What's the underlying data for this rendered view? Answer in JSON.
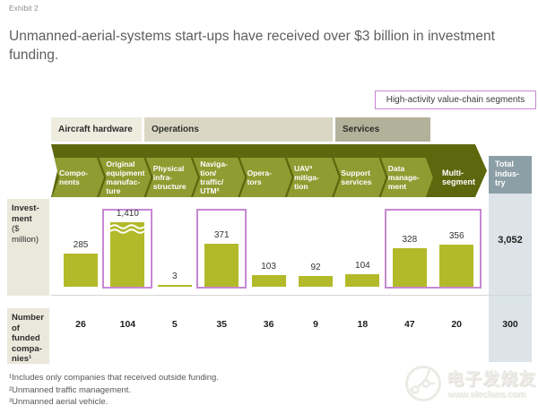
{
  "exhibit_label": "Exhibit 2",
  "title": "Unmanned-aerial-systems start-ups have received over $3 billion in investment funding.",
  "legend_box_label": "High-activity value-chain segments",
  "value_chain_groups": [
    {
      "name": "Aircraft hardware"
    },
    {
      "name": "Operations"
    },
    {
      "name": "Services"
    }
  ],
  "row_labels": {
    "investment_bold": "Invest-\nment",
    "investment_rest": "($\nmillion)",
    "companies": "Number\nof\nfunded\ncompa-\nnies¹"
  },
  "chart_data": {
    "type": "bar",
    "categories": [
      "Components",
      "Original equipment manufacture",
      "Physical infrastructure",
      "Navigation/traffic/UTM²",
      "Operators",
      "UAV³ mitigation",
      "Support services",
      "Data management",
      "Multi-segment"
    ],
    "category_display": [
      "Compo-\nnents",
      "Original\nequipment\nmanufac-\nture",
      "Physical\ninfra-\nstructure",
      "Naviga-\ntion/\ntraffic/\nUTM²",
      "Opera-\ntors",
      "UAV³\nmitiga-\ntion",
      "Support\nservices",
      "Data\nmanage-\nment",
      "Multi-\nsegment"
    ],
    "series": [
      {
        "name": "Investment ($ million)",
        "values": [
          285,
          1410,
          3,
          371,
          103,
          92,
          104,
          328,
          356
        ],
        "labels": [
          "285",
          "1,410",
          "3",
          "371",
          "103",
          "92",
          "104",
          "328",
          "356"
        ]
      },
      {
        "name": "Number of funded companies¹",
        "values": [
          26,
          104,
          5,
          35,
          36,
          9,
          18,
          47,
          20
        ],
        "labels": [
          "26",
          "104",
          "5",
          "35",
          "36",
          "9",
          "18",
          "47",
          "20"
        ]
      }
    ],
    "total_column": {
      "header": "Total industry",
      "header_display": "Total\nindus-\ntry",
      "investment": 3052,
      "investment_label": "3,052",
      "companies": 300,
      "companies_label": "300"
    },
    "axis_break_index": 1,
    "highlighted_segments": [
      [
        1,
        1
      ],
      [
        3,
        3
      ],
      [
        7,
        8
      ]
    ],
    "legend_position": "top-right",
    "grid": false
  },
  "footnotes": [
    "¹Includes only companies that received outside funding.",
    "²Unmanned traffic management.",
    "³Unmanned aerial vehicle."
  ],
  "watermark": {
    "brand": "电子发烧友",
    "url": "www.elecfans.com"
  },
  "colors": {
    "bar": "#b3ba29",
    "band_dark": "#5d670e",
    "band_chevron": "#8f9c31",
    "highlight_border": "#c788d3",
    "total_header_bg": "#8c9fa7",
    "total_strip_bg": "#dce4e9",
    "group_aircraft_bg": "#edecdf",
    "group_operations_bg": "#d9d7c3",
    "group_services_bg": "#b2b199",
    "row_label_bg": "#eae8db"
  }
}
